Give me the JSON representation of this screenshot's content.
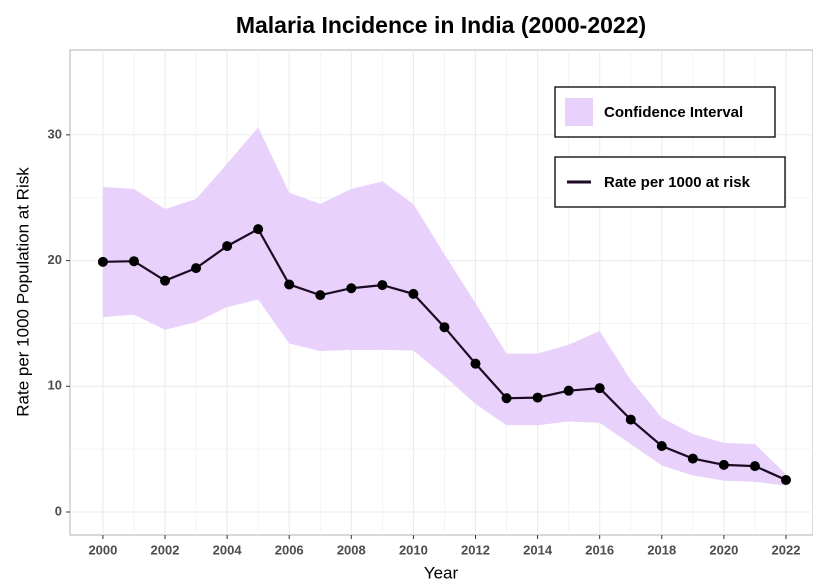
{
  "chart_data": {
    "type": "line",
    "title": "Malaria Incidence in India (2000-2022)",
    "x_label": "Year",
    "y_label": "Rate per 1000 Population at Risk",
    "x": [
      2000,
      2001,
      2002,
      2003,
      2004,
      2005,
      2006,
      2007,
      2008,
      2009,
      2010,
      2011,
      2012,
      2013,
      2014,
      2015,
      2016,
      2017,
      2018,
      2019,
      2020,
      2021,
      2022
    ],
    "series": [
      {
        "name": "Rate per 1000 at risk",
        "color": "#1c0b22",
        "values": [
          19.9,
          19.95,
          18.4,
          19.4,
          21.15,
          22.5,
          18.1,
          17.25,
          17.8,
          18.05,
          17.35,
          14.7,
          11.8,
          9.05,
          9.1,
          9.65,
          9.85,
          7.35,
          5.25,
          4.25,
          3.75,
          3.65,
          2.55
        ]
      }
    ],
    "band": {
      "name": "Confidence Interval",
      "color": "#e8d1fb",
      "upper": [
        25.85,
        25.7,
        24.1,
        24.9,
        27.7,
        30.6,
        25.4,
        24.5,
        25.7,
        26.3,
        24.5,
        20.5,
        16.6,
        12.6,
        12.6,
        13.3,
        14.4,
        10.5,
        7.5,
        6.2,
        5.5,
        5.4,
        3.0
      ],
      "lower": [
        15.5,
        15.7,
        14.5,
        15.1,
        16.3,
        16.9,
        13.4,
        12.8,
        12.9,
        12.9,
        12.85,
        10.8,
        8.6,
        6.9,
        6.9,
        7.2,
        7.1,
        5.4,
        3.7,
        2.9,
        2.5,
        2.4,
        2.1
      ]
    },
    "xlim": [
      1998.94,
      2022.87
    ],
    "ylim": [
      -1.83,
      36.75
    ],
    "xticks": [
      2000,
      2002,
      2004,
      2006,
      2008,
      2010,
      2012,
      2014,
      2016,
      2018,
      2020,
      2022
    ],
    "yticks": [
      0,
      10,
      20,
      30
    ],
    "grid": true,
    "legend": "top-right"
  }
}
